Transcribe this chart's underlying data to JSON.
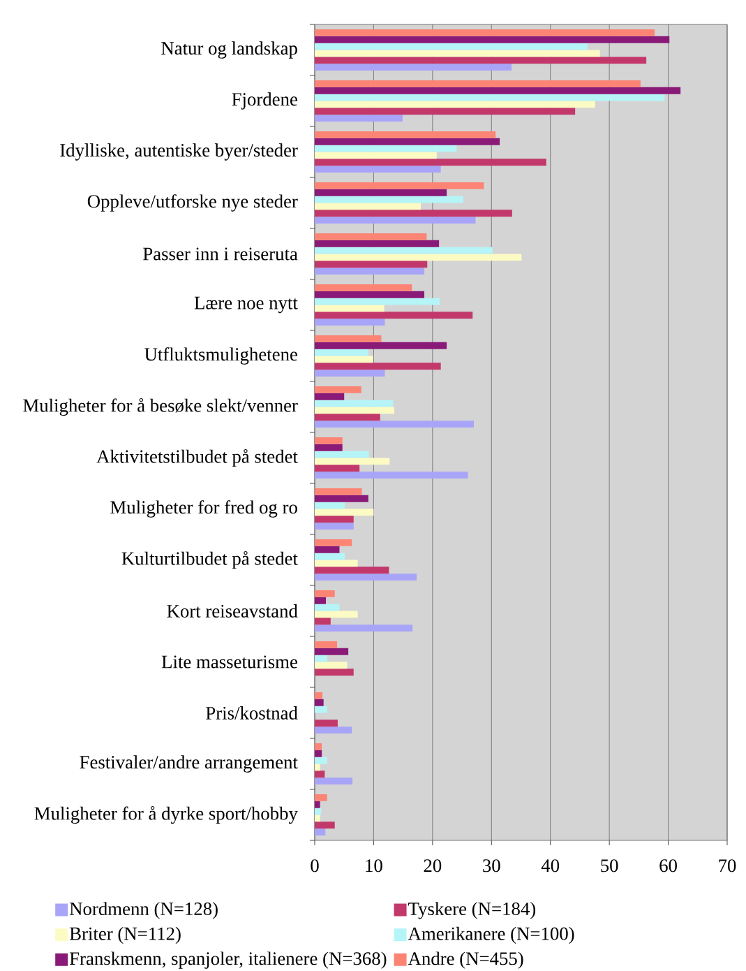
{
  "chart_data": {
    "type": "bar",
    "orientation": "horizontal",
    "categories": [
      "Natur og landskap",
      "Fjordene",
      "Idylliske, autentiske byer/steder",
      "Oppleve/utforske nye steder",
      "Passer inn i reiseruta",
      "Lære noe nytt",
      "Utfluktsmulighetene",
      "Muligheter for å besøke slekt/venner",
      "Aktivitetstilbudet på stedet",
      "Muligheter for fred og ro",
      "Kulturtilbudet på stedet",
      "Kort reiseavstand",
      "Lite masseturisme",
      "Pris/kostnad",
      "Festivaler/andre arrangement",
      "Muligheter for å dyrke sport/hobby"
    ],
    "series": [
      {
        "name": "Nordmenn (N=128)",
        "color": "#a8a4f8",
        "values": [
          33.4,
          14.9,
          21.4,
          27.3,
          18.6,
          11.9,
          11.9,
          27.0,
          26.0,
          6.6,
          17.3,
          16.6,
          null,
          6.3,
          6.4,
          1.8
        ]
      },
      {
        "name": "Tyskere (N=184)",
        "color": "#c2386b",
        "values": [
          56.3,
          44.2,
          39.3,
          33.5,
          19.1,
          26.8,
          21.4,
          11.1,
          7.6,
          6.6,
          12.6,
          2.7,
          6.6,
          3.9,
          1.7,
          3.4
        ]
      },
      {
        "name": "Briter (N=112)",
        "color": "#fdfbc4",
        "values": [
          48.4,
          47.6,
          20.7,
          18.0,
          35.1,
          11.8,
          9.9,
          13.5,
          12.7,
          10.0,
          7.3,
          7.3,
          5.5,
          null,
          0.9,
          0.9
        ]
      },
      {
        "name": "Amerikanere (N=100)",
        "color": "#b6f5f7",
        "values": [
          46.3,
          59.4,
          24.1,
          25.2,
          30.2,
          21.2,
          9.1,
          13.3,
          9.2,
          5.1,
          5.1,
          4.2,
          2.1,
          2.1,
          2.1,
          1.1
        ]
      },
      {
        "name": "Franskmenn, spanjoler, italienere (N=368)",
        "color": "#8a1a78",
        "values": [
          60.2,
          62.1,
          31.4,
          22.4,
          21.1,
          18.6,
          22.4,
          5.0,
          4.7,
          9.1,
          4.2,
          1.9,
          5.7,
          1.5,
          1.2,
          0.9
        ]
      },
      {
        "name": "Andre (N=455)",
        "color": "#fb8474",
        "values": [
          57.7,
          55.3,
          30.7,
          28.7,
          19.0,
          16.5,
          11.3,
          7.9,
          4.7,
          8.0,
          6.3,
          3.4,
          3.8,
          1.3,
          1.2,
          2.1
        ]
      }
    ],
    "xlim": [
      0,
      70
    ],
    "xticks": [
      0,
      10,
      20,
      30,
      40,
      50,
      60,
      70
    ],
    "grid": "x",
    "legend": "bottom"
  }
}
